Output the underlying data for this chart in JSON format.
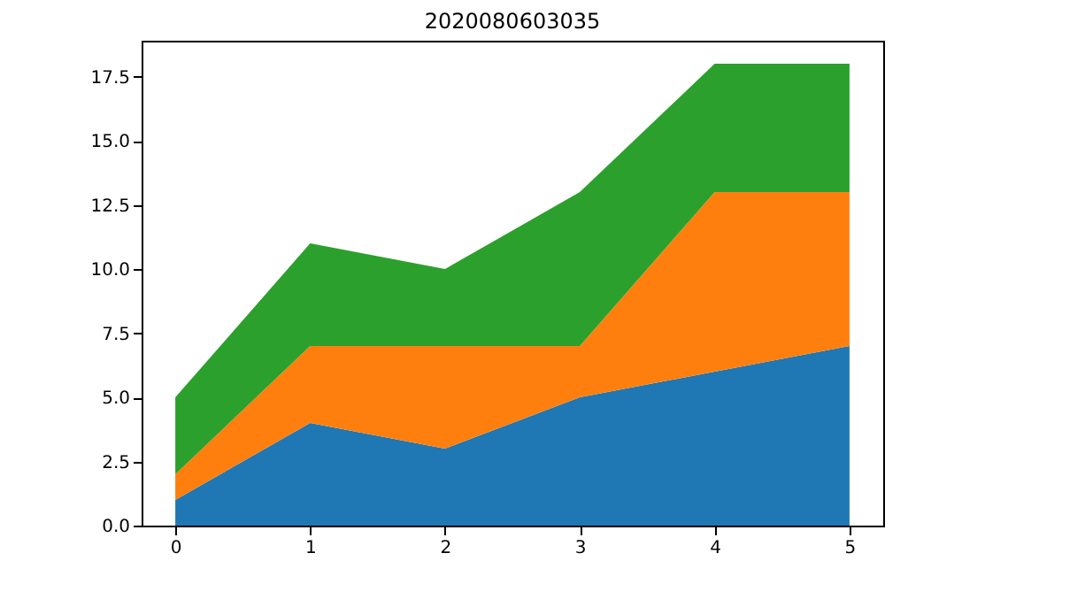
{
  "chart_data": {
    "type": "area",
    "title": "2020080603035",
    "stacked": true,
    "grid": false,
    "x": [
      0,
      1,
      2,
      3,
      4,
      5
    ],
    "series": [
      {
        "color": "#1f77b4",
        "values": [
          1,
          4,
          3,
          5,
          6,
          7
        ]
      },
      {
        "color": "#ff7f0e",
        "values": [
          1,
          3,
          4,
          2,
          7,
          6
        ]
      },
      {
        "color": "#2ca02c",
        "values": [
          3,
          4,
          3,
          6,
          5,
          5
        ]
      }
    ],
    "xlim": [
      -0.25,
      5.25
    ],
    "xticks": [
      0,
      1,
      2,
      3,
      4,
      5
    ],
    "ylim": [
      0,
      18.9
    ],
    "yticks": [
      {
        "value": 0,
        "label": "0.0"
      },
      {
        "value": 2.5,
        "label": "2.5"
      },
      {
        "value": 5,
        "label": "5.0"
      },
      {
        "value": 7.5,
        "label": "7.5"
      },
      {
        "value": 10,
        "label": "10.0"
      },
      {
        "value": 12.5,
        "label": "12.5"
      },
      {
        "value": 15,
        "label": "15.0"
      },
      {
        "value": 17.5,
        "label": "17.5"
      }
    ]
  }
}
